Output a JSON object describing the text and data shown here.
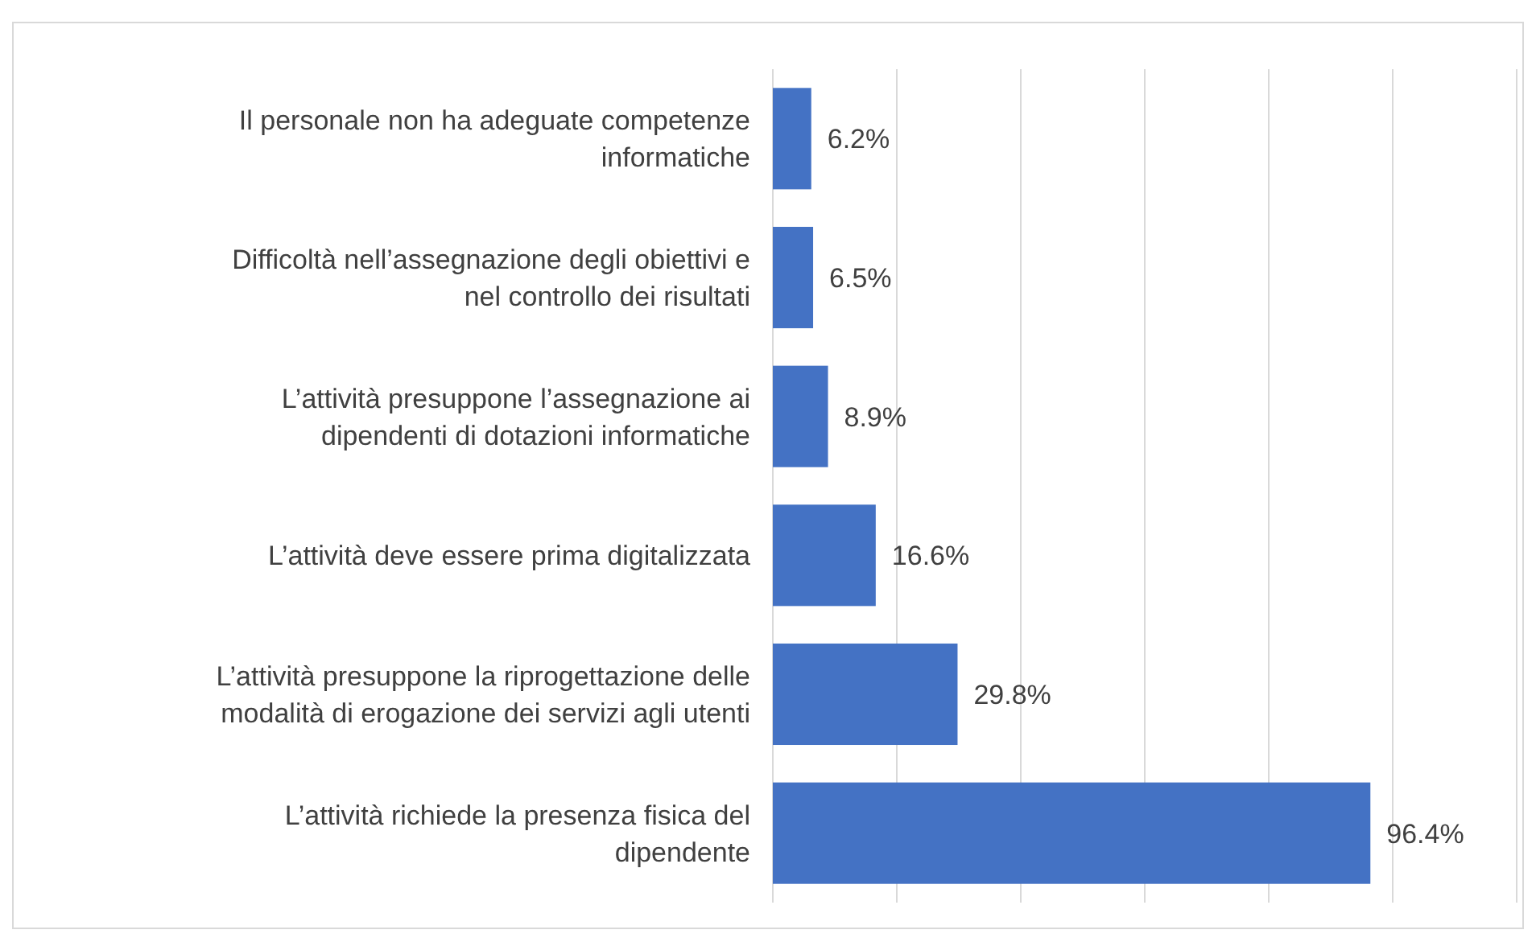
{
  "chart_data": {
    "type": "bar",
    "orientation": "horizontal",
    "categories": [
      "Il personale non ha adeguate competenze informatiche",
      "Difficoltà nell’assegnazione degli obiettivi e nel controllo dei risultati",
      "L’attività presuppone l’assegnazione ai dipendenti di dotazioni informatiche",
      "L’attività deve essere prima digitalizzata",
      "L’attività presuppone la riprogettazione delle modalità di erogazione dei servizi agli utenti",
      "L’attività richiede la presenza fisica del dipendente"
    ],
    "values": [
      6.2,
      6.5,
      8.9,
      16.6,
      29.8,
      96.4
    ],
    "value_labels": [
      "6.2%",
      "6.5%",
      "8.9%",
      "16.6%",
      "29.8%",
      "96.4%"
    ],
    "color": "#4472c4",
    "xlim": [
      0,
      120
    ],
    "xticks": [
      {
        "value": 0,
        "label": null
      },
      {
        "value": 20,
        "label": null
      },
      {
        "value": 40,
        "label": null
      },
      {
        "value": 60,
        "label": null
      },
      {
        "value": 80,
        "label": null
      },
      {
        "value": 100,
        "label": null
      },
      {
        "value": 120,
        "label": null
      }
    ],
    "grid": "x",
    "tick_labels": "y"
  }
}
